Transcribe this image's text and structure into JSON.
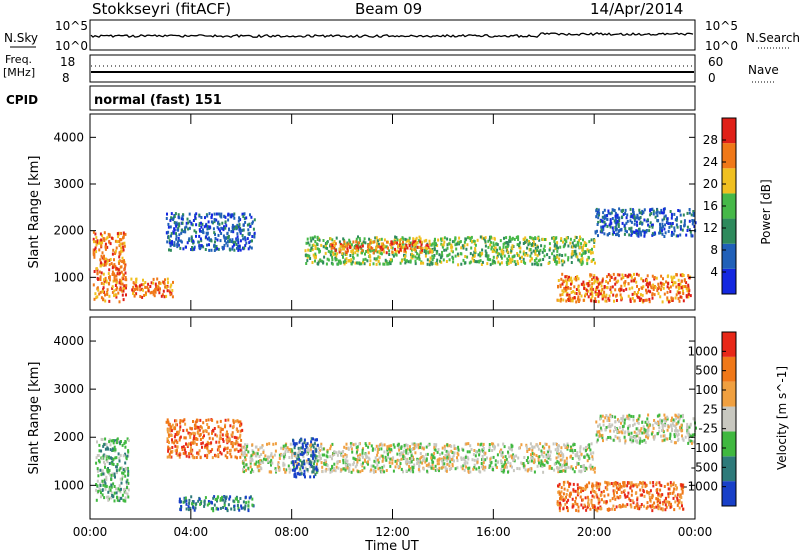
{
  "header": {
    "station": "Stokkseyri (fitACF)",
    "beam": "Beam 09",
    "date": "14/Apr/2014"
  },
  "noise_panel": {
    "left_label": "N.Sky",
    "right_label": "N.Search",
    "left_ticks": [
      "10^5",
      "10^0"
    ],
    "right_ticks": [
      "10^5",
      "10^0"
    ]
  },
  "freq_panel": {
    "left_label_line1": "Freq.",
    "left_label_line2": "[MHz]",
    "left_ticks": [
      "18",
      "8"
    ],
    "right_label": "Nave",
    "right_ticks": [
      "60",
      "0"
    ]
  },
  "cpid_panel": {
    "label": "CPID",
    "value": "normal (fast) 151"
  },
  "x_axis": {
    "label": "Time UT",
    "ticks": [
      "00:00",
      "04:00",
      "08:00",
      "12:00",
      "16:00",
      "20:00",
      "00:00"
    ]
  },
  "chart_data": [
    {
      "type": "heatmap",
      "name": "power",
      "ylabel": "Slant Range [km]",
      "yticks": [
        1000,
        2000,
        3000,
        4000
      ],
      "ylim": [
        300,
        4500
      ],
      "xlim_hours": [
        0,
        24
      ],
      "colorbar_label": "Power [dB]",
      "colorbar_ticks": [
        "28",
        "24",
        "20",
        "16",
        "12",
        "8",
        "4"
      ],
      "colors": [
        "#1428e0",
        "#2060b8",
        "#2e8a5c",
        "#46b848",
        "#f0c020",
        "#f07818",
        "#e02018"
      ],
      "bands": [
        {
          "from_h": 0.1,
          "to_h": 1.4,
          "range_lo": 500,
          "range_hi": 2000,
          "level": 5
        },
        {
          "from_h": 1.6,
          "to_h": 3.3,
          "range_lo": 600,
          "range_hi": 1000,
          "level": 5
        },
        {
          "from_h": 3.0,
          "to_h": 6.5,
          "range_lo": 1600,
          "range_hi": 2400,
          "level": 1
        },
        {
          "from_h": 8.5,
          "to_h": 20.0,
          "range_lo": 1300,
          "range_hi": 1900,
          "level": 3
        },
        {
          "from_h": 9.5,
          "to_h": 13.5,
          "range_lo": 1550,
          "range_hi": 1800,
          "level": 5
        },
        {
          "from_h": 18.5,
          "to_h": 23.8,
          "range_lo": 500,
          "range_hi": 1100,
          "level": 5
        },
        {
          "from_h": 20.0,
          "to_h": 24.0,
          "range_lo": 1900,
          "range_hi": 2500,
          "level": 1
        }
      ]
    },
    {
      "type": "heatmap",
      "name": "velocity",
      "ylabel": "Slant Range [km]",
      "yticks": [
        1000,
        2000,
        3000,
        4000
      ],
      "ylim": [
        300,
        4500
      ],
      "xlim_hours": [
        0,
        24
      ],
      "colorbar_label": "Velocity [m s^-1]",
      "colorbar_ticks": [
        "1000",
        "500",
        "100",
        "25",
        "-25",
        "-100",
        "-500",
        "-1000"
      ],
      "colors": [
        "#1840c8",
        "#2e7a7a",
        "#40b840",
        "#c8c8c0",
        "#f0a040",
        "#f07818",
        "#e82818"
      ],
      "bands": [
        {
          "from_h": 0.2,
          "to_h": 1.5,
          "range_lo": 700,
          "range_hi": 2000,
          "level": 2
        },
        {
          "from_h": 3.0,
          "to_h": 6.0,
          "range_lo": 1600,
          "range_hi": 2400,
          "level": 5
        },
        {
          "from_h": 3.5,
          "to_h": 6.5,
          "range_lo": 500,
          "range_hi": 800,
          "level": 1
        },
        {
          "from_h": 6.0,
          "to_h": 20.0,
          "range_lo": 1300,
          "range_hi": 1900,
          "level": 3
        },
        {
          "from_h": 8.0,
          "to_h": 9.0,
          "range_lo": 1200,
          "range_hi": 2000,
          "level": 0
        },
        {
          "from_h": 18.5,
          "to_h": 23.5,
          "range_lo": 500,
          "range_hi": 1100,
          "level": 5
        },
        {
          "from_h": 20.0,
          "to_h": 24.0,
          "range_lo": 1900,
          "range_hi": 2500,
          "level": 3
        }
      ]
    }
  ]
}
